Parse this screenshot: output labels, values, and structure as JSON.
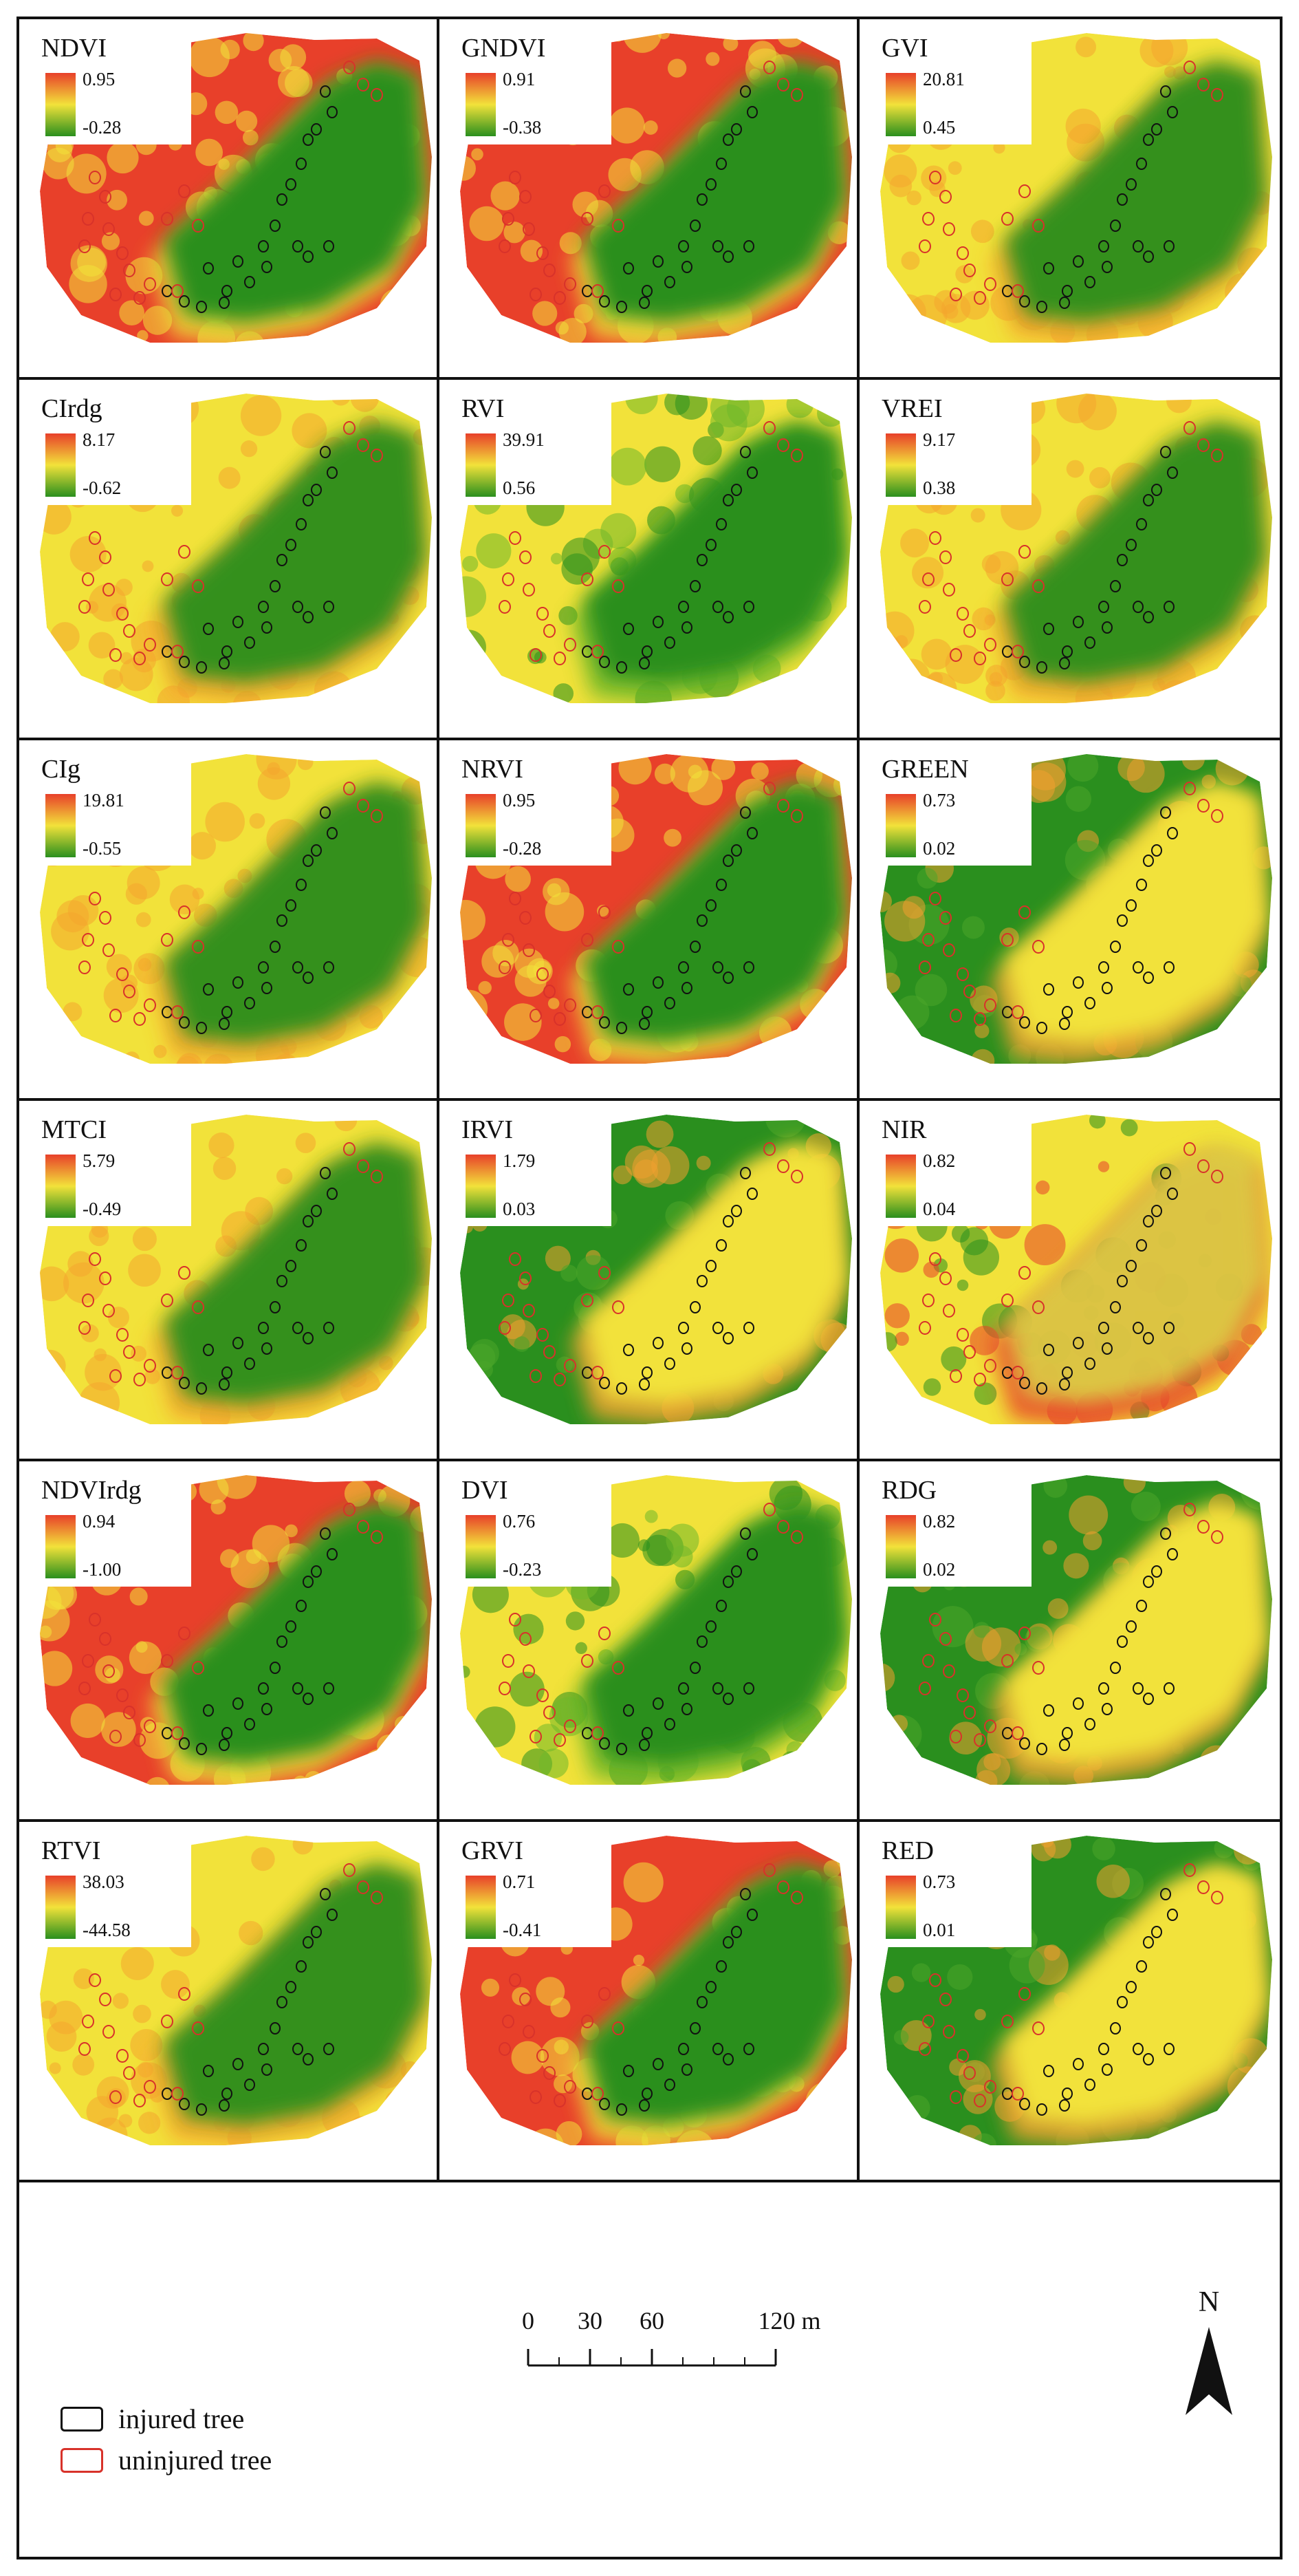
{
  "figure": {
    "panels": [
      {
        "name": "NDVI",
        "max": "0.95",
        "min": "-0.28",
        "pattern": "ndvi"
      },
      {
        "name": "GNDVI",
        "max": "0.91",
        "min": "-0.38",
        "pattern": "ndvi"
      },
      {
        "name": "GVI",
        "max": "20.81",
        "min": "0.45",
        "pattern": "yellow"
      },
      {
        "name": "CIrdg",
        "max": "8.17",
        "min": "-0.62",
        "pattern": "yellow"
      },
      {
        "name": "RVI",
        "max": "39.91",
        "min": "0.56",
        "pattern": "rvi"
      },
      {
        "name": "VREI",
        "max": "9.17",
        "min": "0.38",
        "pattern": "yellow"
      },
      {
        "name": "CIg",
        "max": "19.81",
        "min": "-0.55",
        "pattern": "yellow"
      },
      {
        "name": "NRVI",
        "max": "0.95",
        "min": "-0.28",
        "pattern": "ndvi"
      },
      {
        "name": "GREEN",
        "max": "0.73",
        "min": "0.02",
        "pattern": "inverted"
      },
      {
        "name": "MTCI",
        "max": "5.79",
        "min": "-0.49",
        "pattern": "yellow"
      },
      {
        "name": "IRVI",
        "max": "1.79",
        "min": "0.03",
        "pattern": "inverted"
      },
      {
        "name": "NIR",
        "max": "0.82",
        "min": "0.04",
        "pattern": "nir"
      },
      {
        "name": "NDVIrdg",
        "max": "0.94",
        "min": "-1.00",
        "pattern": "ndvi"
      },
      {
        "name": "DVI",
        "max": "0.76",
        "min": "-0.23",
        "pattern": "rvi"
      },
      {
        "name": "RDG",
        "max": "0.82",
        "min": "0.02",
        "pattern": "inverted"
      },
      {
        "name": "RTVI",
        "max": "38.03",
        "min": "-44.58",
        "pattern": "yellow"
      },
      {
        "name": "GRVI",
        "max": "0.71",
        "min": "-0.41",
        "pattern": "ndvi"
      },
      {
        "name": "RED",
        "max": "0.73",
        "min": "0.01",
        "pattern": "inverted"
      }
    ],
    "colors": {
      "high": "#e8402a",
      "mid": "#f2e23a",
      "low": "#2a8f1e",
      "injured": "#111111",
      "uninjured": "#d8322a"
    }
  },
  "legend": {
    "injured_label": "injured tree",
    "uninjured_label": "uninjured tree"
  },
  "scale_bar": {
    "ticks": [
      "0",
      "30",
      "60",
      "120 m"
    ]
  },
  "north_arrow": {
    "label": "N",
    "icon": "north-arrow-icon"
  }
}
